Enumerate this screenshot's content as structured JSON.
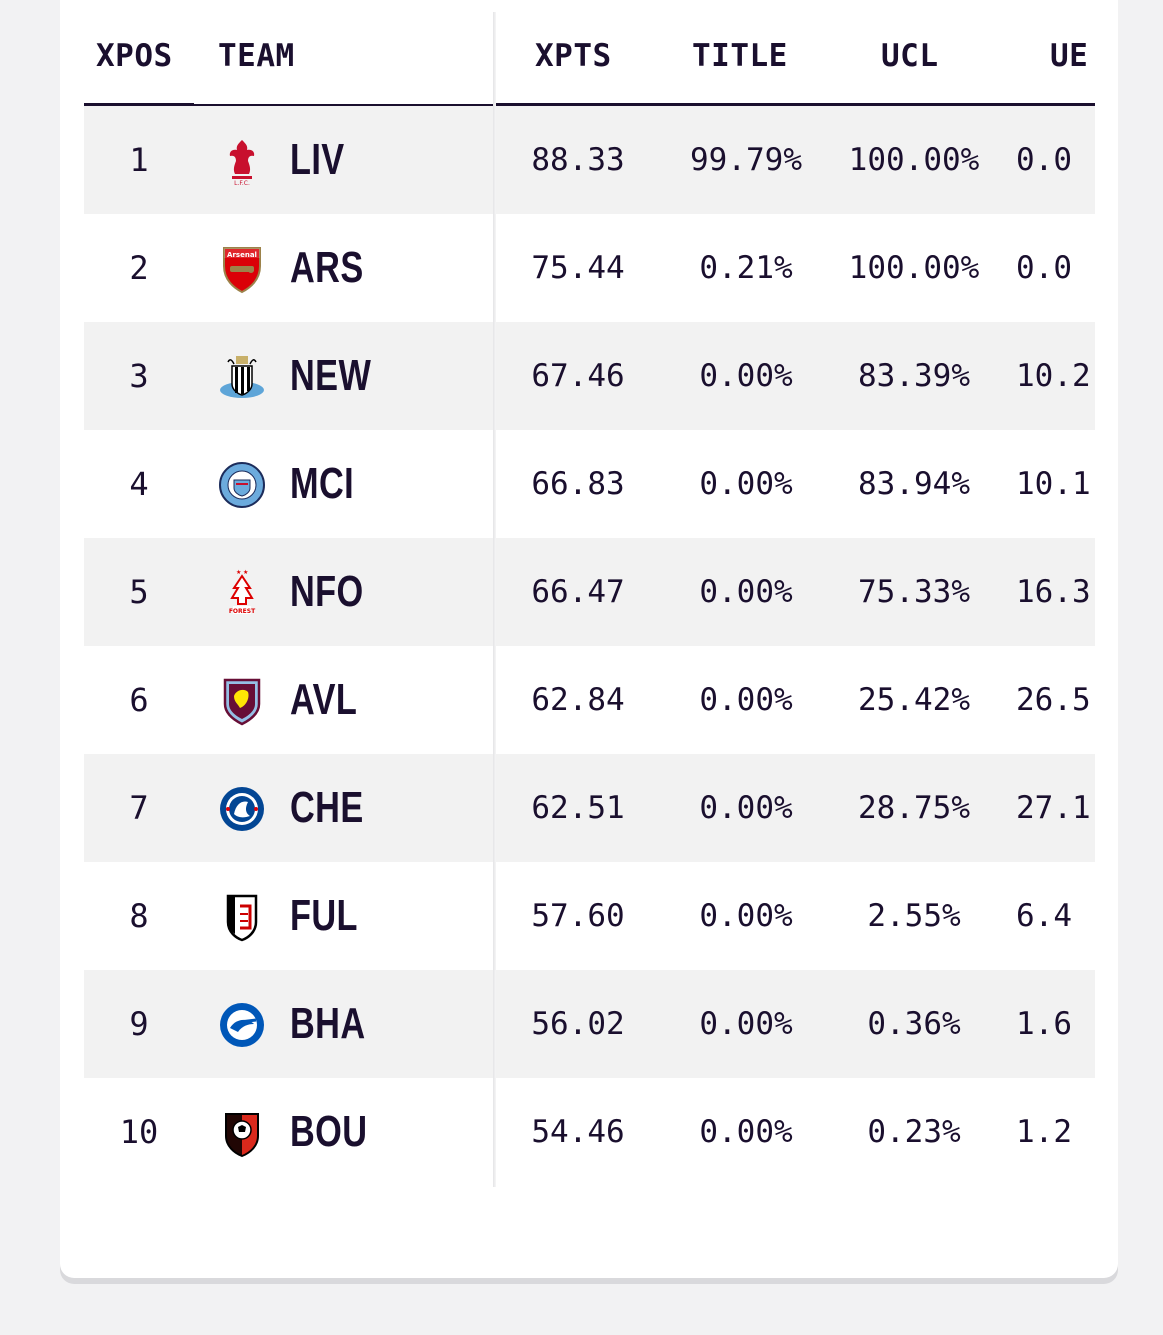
{
  "columns": {
    "xpos": "XPOS",
    "team": "TEAM",
    "xpts": "XPTS",
    "title": "TITLE",
    "ucl": "UCL",
    "ue": "UE"
  },
  "colors": {
    "text": "#1a0f2e",
    "row_shade": "#f2f2f2",
    "card": "#ffffff",
    "page_bg": "#f2f2f3"
  },
  "rows": [
    {
      "pos": "1",
      "team": "LIV",
      "crest_icon": "liverpool-crest-icon",
      "xpts": "88.33",
      "title": "99.79%",
      "ucl": "100.00%",
      "ue": "0.0"
    },
    {
      "pos": "2",
      "team": "ARS",
      "crest_icon": "arsenal-crest-icon",
      "xpts": "75.44",
      "title": "0.21%",
      "ucl": "100.00%",
      "ue": "0.0"
    },
    {
      "pos": "3",
      "team": "NEW",
      "crest_icon": "newcastle-crest-icon",
      "xpts": "67.46",
      "title": "0.00%",
      "ucl": "83.39%",
      "ue": "10.2"
    },
    {
      "pos": "4",
      "team": "MCI",
      "crest_icon": "man-city-crest-icon",
      "xpts": "66.83",
      "title": "0.00%",
      "ucl": "83.94%",
      "ue": "10.1"
    },
    {
      "pos": "5",
      "team": "NFO",
      "crest_icon": "nottingham-forest-crest-icon",
      "xpts": "66.47",
      "title": "0.00%",
      "ucl": "75.33%",
      "ue": "16.3"
    },
    {
      "pos": "6",
      "team": "AVL",
      "crest_icon": "aston-villa-crest-icon",
      "xpts": "62.84",
      "title": "0.00%",
      "ucl": "25.42%",
      "ue": "26.5"
    },
    {
      "pos": "7",
      "team": "CHE",
      "crest_icon": "chelsea-crest-icon",
      "xpts": "62.51",
      "title": "0.00%",
      "ucl": "28.75%",
      "ue": "27.1"
    },
    {
      "pos": "8",
      "team": "FUL",
      "crest_icon": "fulham-crest-icon",
      "xpts": "57.60",
      "title": "0.00%",
      "ucl": "2.55%",
      "ue": "6.4"
    },
    {
      "pos": "9",
      "team": "BHA",
      "crest_icon": "brighton-crest-icon",
      "xpts": "56.02",
      "title": "0.00%",
      "ucl": "0.36%",
      "ue": "1.6"
    },
    {
      "pos": "10",
      "team": "BOU",
      "crest_icon": "bournemouth-crest-icon",
      "xpts": "54.46",
      "title": "0.00%",
      "ucl": "0.23%",
      "ue": "1.2"
    }
  ]
}
